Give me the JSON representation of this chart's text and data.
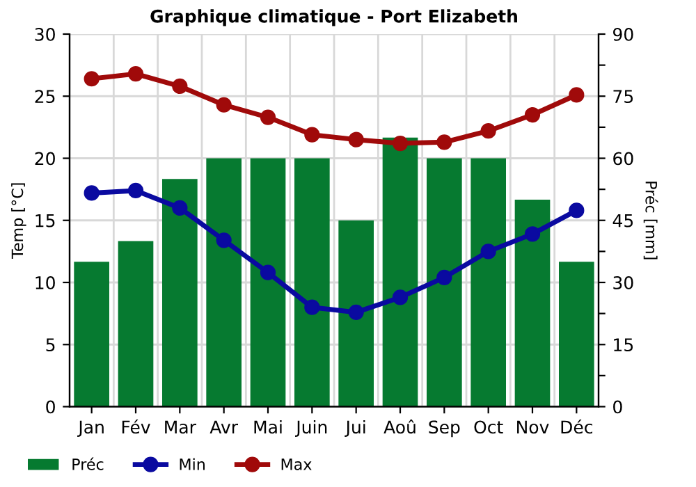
{
  "chart_data": {
    "type": "bar",
    "title": "Graphique climatique - Port Elizabeth",
    "ylabel": "Temp [°C]",
    "y2label": "Préc [mm]",
    "categories": [
      "Jan",
      "Fév",
      "Mar",
      "Avr",
      "Mai",
      "Juin",
      "Jui",
      "Aoû",
      "Sep",
      "Oct",
      "Nov",
      "Déc"
    ],
    "series": [
      {
        "name": "Préc",
        "axis": "y2",
        "color": "#067a30",
        "values": [
          35,
          40,
          55,
          60,
          60,
          60,
          45,
          65,
          60,
          60,
          50,
          35
        ]
      },
      {
        "name": "Min",
        "type": "line",
        "color": "#0a0aa0",
        "values": [
          17.2,
          17.4,
          16.0,
          13.4,
          10.8,
          8.0,
          7.6,
          8.8,
          10.4,
          12.5,
          13.9,
          15.8
        ]
      },
      {
        "name": "Max",
        "type": "line",
        "color": "#a00a0a",
        "values": [
          26.4,
          26.8,
          25.8,
          24.3,
          23.3,
          21.9,
          21.5,
          21.2,
          21.3,
          22.2,
          23.5,
          25.1
        ]
      }
    ],
    "ylim": [
      0,
      30
    ],
    "yticks": [
      0,
      5,
      10,
      15,
      20,
      25,
      30
    ],
    "y2lim": [
      0,
      90
    ],
    "y2ticks": [
      0,
      {
        "value": 7.5,
        "label": null
      },
      15,
      {
        "value": 22.5,
        "label": null
      },
      30,
      {
        "value": 37.5,
        "label": null
      },
      45,
      {
        "value": 52.5,
        "label": null
      },
      60,
      {
        "value": 67.5,
        "label": null
      },
      75,
      {
        "value": 82.5,
        "label": null
      },
      90
    ],
    "grid": true,
    "legend": "bottom left",
    "marker": "circle",
    "line_style": "solid"
  }
}
